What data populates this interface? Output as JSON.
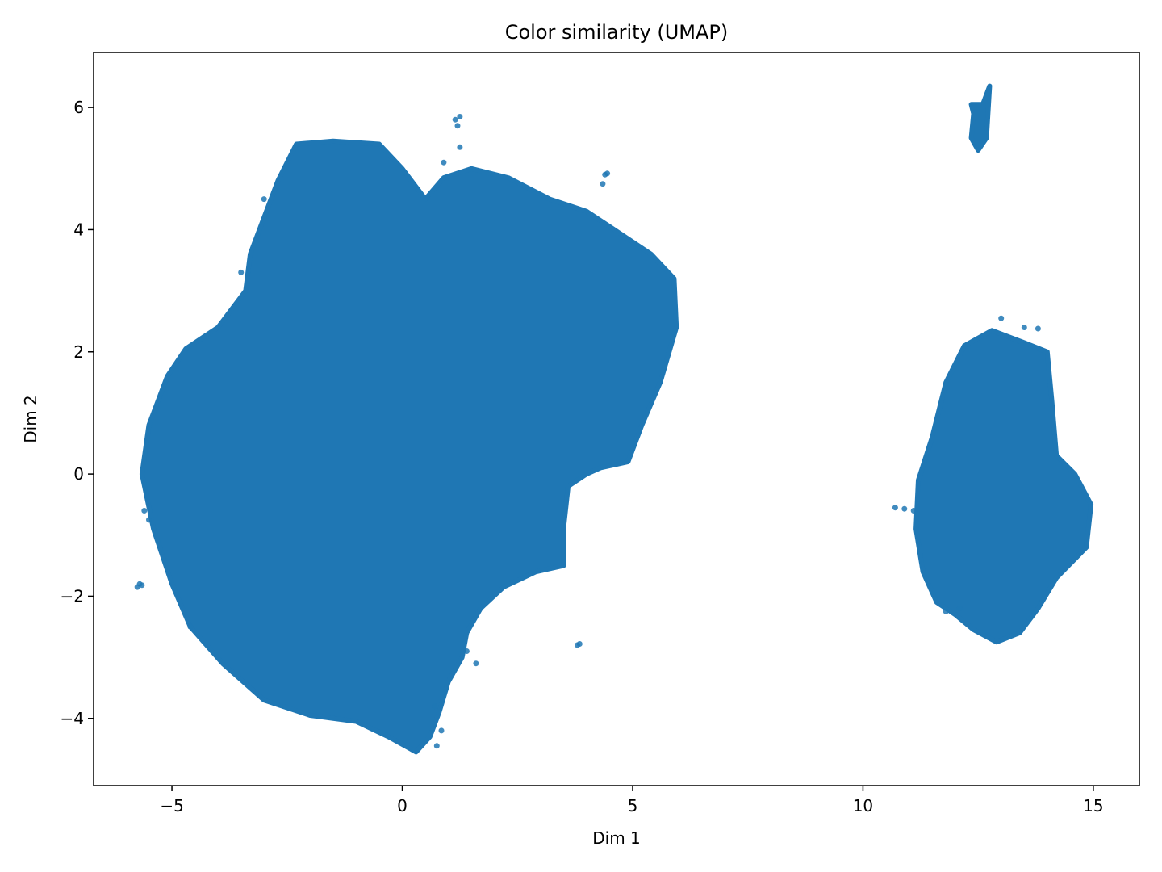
{
  "chart_data": {
    "type": "scatter",
    "title": "Color similarity (UMAP)",
    "xlabel": "Dim 1",
    "ylabel": "Dim 2",
    "xlim": [
      -6.7,
      16.0
    ],
    "ylim": [
      -5.1,
      6.9
    ],
    "xticks": [
      {
        "value": -5,
        "label": "−5"
      },
      {
        "value": 0,
        "label": "0"
      },
      {
        "value": 5,
        "label": "5"
      },
      {
        "value": 10,
        "label": "10"
      },
      {
        "value": 15,
        "label": "15"
      }
    ],
    "yticks": [
      {
        "value": -4,
        "label": "−4"
      },
      {
        "value": -2,
        "label": "−2"
      },
      {
        "value": 0,
        "label": "0"
      },
      {
        "value": 2,
        "label": "2"
      },
      {
        "value": 4,
        "label": "4"
      },
      {
        "value": 6,
        "label": "6"
      }
    ],
    "grid": false,
    "legend": false,
    "color": "#1f77b4",
    "clusters": [
      {
        "shape": "main-cluster",
        "outline": [
          [
            -2.3,
            5.4
          ],
          [
            -1.5,
            5.45
          ],
          [
            -0.5,
            5.4
          ],
          [
            0.0,
            5.0
          ],
          [
            0.5,
            4.5
          ],
          [
            0.9,
            4.85
          ],
          [
            1.5,
            5.0
          ],
          [
            2.3,
            4.85
          ],
          [
            3.2,
            4.5
          ],
          [
            4.0,
            4.3
          ],
          [
            4.7,
            3.95
          ],
          [
            5.4,
            3.6
          ],
          [
            5.9,
            3.2
          ],
          [
            5.95,
            2.4
          ],
          [
            5.6,
            1.5
          ],
          [
            5.2,
            0.8
          ],
          [
            4.9,
            0.2
          ],
          [
            4.3,
            0.1
          ],
          [
            4.0,
            0.0
          ],
          [
            3.6,
            -0.2
          ],
          [
            3.5,
            -0.9
          ],
          [
            3.5,
            -1.5
          ],
          [
            2.9,
            -1.6
          ],
          [
            2.2,
            -1.85
          ],
          [
            1.7,
            -2.2
          ],
          [
            1.4,
            -2.6
          ],
          [
            1.3,
            -3.0
          ],
          [
            1.0,
            -3.4
          ],
          [
            0.8,
            -3.9
          ],
          [
            0.6,
            -4.3
          ],
          [
            0.3,
            -4.55
          ],
          [
            -0.3,
            -4.3
          ],
          [
            -1.0,
            -4.05
          ],
          [
            -2.0,
            -3.95
          ],
          [
            -3.0,
            -3.7
          ],
          [
            -3.9,
            -3.1
          ],
          [
            -4.6,
            -2.5
          ],
          [
            -5.0,
            -1.8
          ],
          [
            -5.4,
            -0.9
          ],
          [
            -5.65,
            0.0
          ],
          [
            -5.5,
            0.8
          ],
          [
            -5.1,
            1.6
          ],
          [
            -4.7,
            2.05
          ],
          [
            -4.0,
            2.4
          ],
          [
            -3.4,
            3.0
          ],
          [
            -3.3,
            3.6
          ],
          [
            -3.0,
            4.2
          ],
          [
            -2.7,
            4.8
          ]
        ]
      },
      {
        "shape": "right-cluster",
        "outline": [
          [
            12.2,
            2.1
          ],
          [
            12.8,
            2.35
          ],
          [
            13.5,
            2.15
          ],
          [
            14.0,
            2.0
          ],
          [
            14.1,
            1.2
          ],
          [
            14.2,
            0.3
          ],
          [
            14.6,
            0.0
          ],
          [
            14.95,
            -0.5
          ],
          [
            14.85,
            -1.2
          ],
          [
            14.2,
            -1.7
          ],
          [
            13.8,
            -2.2
          ],
          [
            13.4,
            -2.6
          ],
          [
            12.9,
            -2.75
          ],
          [
            12.4,
            -2.55
          ],
          [
            12.0,
            -2.3
          ],
          [
            11.6,
            -2.1
          ],
          [
            11.3,
            -1.6
          ],
          [
            11.15,
            -0.9
          ],
          [
            11.2,
            -0.1
          ],
          [
            11.5,
            0.6
          ],
          [
            11.8,
            1.5
          ]
        ]
      },
      {
        "shape": "top-right-cluster",
        "outline": [
          [
            12.35,
            6.05
          ],
          [
            12.6,
            6.05
          ],
          [
            12.75,
            6.35
          ],
          [
            12.68,
            5.5
          ],
          [
            12.5,
            5.3
          ],
          [
            12.35,
            5.5
          ],
          [
            12.4,
            5.9
          ]
        ]
      }
    ],
    "points": [
      [
        -5.7,
        -1.8
      ],
      [
        -5.75,
        -1.85
      ],
      [
        -5.65,
        -1.82
      ],
      [
        1.15,
        5.8
      ],
      [
        1.2,
        5.7
      ],
      [
        1.25,
        5.85
      ],
      [
        1.25,
        5.35
      ],
      [
        0.9,
        5.1
      ],
      [
        4.4,
        4.9
      ],
      [
        4.35,
        4.75
      ],
      [
        4.45,
        4.92
      ],
      [
        3.8,
        -2.8
      ],
      [
        3.85,
        -2.78
      ],
      [
        1.6,
        -3.1
      ],
      [
        1.4,
        -2.9
      ],
      [
        0.7,
        -3.8
      ],
      [
        0.85,
        -4.2
      ],
      [
        0.75,
        -4.45
      ],
      [
        10.7,
        -0.55
      ],
      [
        10.9,
        -0.57
      ],
      [
        11.1,
        -0.6
      ],
      [
        11.8,
        -2.25
      ],
      [
        12.1,
        -2.2
      ],
      [
        13.0,
        2.55
      ],
      [
        13.5,
        2.4
      ],
      [
        13.8,
        2.38
      ],
      [
        -5.6,
        -0.6
      ],
      [
        -5.5,
        -0.75
      ],
      [
        -4.6,
        -2.5
      ],
      [
        -3.5,
        3.3
      ],
      [
        -3.0,
        4.5
      ]
    ]
  }
}
